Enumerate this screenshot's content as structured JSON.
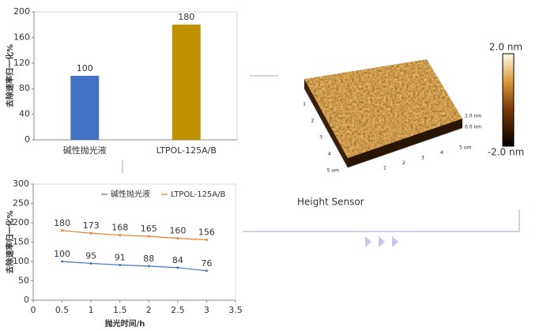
{
  "chart_data": [
    {
      "type": "bar",
      "ylabel": "去除速率归一化%",
      "categories": [
        "碱性抛光液",
        "LTPOL-125A/B"
      ],
      "values": [
        100,
        180
      ],
      "colors": [
        "#4472c4",
        "#bf9000"
      ],
      "ylim": [
        0,
        200
      ],
      "yticks": [
        0,
        40,
        80,
        120,
        160,
        200
      ]
    },
    {
      "type": "line",
      "xlabel": "抛光时间/h",
      "ylabel": "去除速率归一化%",
      "x": [
        0.5,
        1,
        1.5,
        2,
        2.5,
        3
      ],
      "series": [
        {
          "name": "碱性抛光液",
          "color": "#4472c4",
          "values": [
            100,
            95,
            91,
            88,
            84,
            76
          ]
        },
        {
          "name": "LTPOL-125A/B",
          "color": "#ed7d31",
          "values": [
            180,
            173,
            168,
            165,
            160,
            156
          ]
        }
      ],
      "xlim": [
        0,
        3.5
      ],
      "xticks": [
        0,
        0.5,
        1,
        1.5,
        2,
        2.5,
        3,
        3.5
      ],
      "ylim": [
        0,
        300
      ],
      "yticks": [
        0,
        50,
        100,
        150,
        200,
        250,
        300
      ],
      "legend": "top"
    }
  ],
  "afm": {
    "label": "Height Sensor",
    "colorbar_top": "2.0 nm",
    "colorbar_bottom": "-2.0 nm",
    "left_axis": [
      "1",
      "2",
      "3",
      "4",
      "5 um"
    ],
    "bottom_axis": [
      "1",
      "2",
      "3",
      "4",
      "5 um"
    ],
    "z_axis": [
      "2.0 nm",
      "0.0 nm"
    ]
  }
}
